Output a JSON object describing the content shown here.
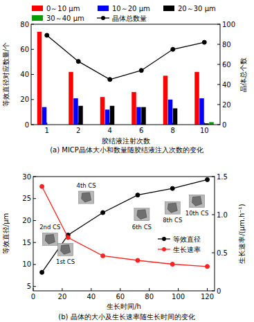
{
  "chart_data": [
    {
      "type": "bar",
      "title": "(a) MICP晶体大小和数量随胶结液注入次数的变化",
      "x_label": "胶结液注射次数",
      "y_label": "等效直径对应数量/个",
      "y2_label": "晶体总个数",
      "categories": [
        "1",
        "2",
        "4",
        "6",
        "8",
        "10"
      ],
      "series": [
        {
          "name": "0～10 μm",
          "color": "#ff0000",
          "values": [
            74,
            42,
            22,
            26,
            39,
            42
          ]
        },
        {
          "name": "10～20 μm",
          "color": "#0000ff",
          "values": [
            14,
            21,
            12,
            14,
            20,
            21
          ]
        },
        {
          "name": "20～30 μm",
          "color": "#000000",
          "values": [
            0,
            15,
            15,
            14,
            13,
            1
          ]
        },
        {
          "name": "30～40 μm",
          "color": "#00a000",
          "values": [
            0,
            0,
            0,
            0,
            0,
            2
          ]
        },
        {
          "name": "晶体总数量",
          "color": "#000000",
          "type": "line",
          "marker": "circle",
          "axis": "y2",
          "values": [
            89,
            63,
            45,
            54,
            75,
            82
          ]
        }
      ],
      "ylim": [
        0,
        80
      ],
      "yticks": [
        0,
        20,
        40,
        60,
        80
      ],
      "y2lim": [
        0,
        100
      ],
      "y2ticks": [
        0,
        20,
        40,
        60,
        80,
        100
      ],
      "legend": "top"
    },
    {
      "type": "line",
      "title": "(b) 晶体的大小及生长速率随生长时间的变化",
      "x_label": "生长时间/h",
      "y_label": "等效直径/μm",
      "y2_label": "生长速率/(μm.h⁻¹)",
      "x": [
        6,
        24,
        48,
        72,
        96,
        120
      ],
      "xlim": [
        0,
        125
      ],
      "xticks": [
        0,
        20,
        40,
        60,
        80,
        100,
        120
      ],
      "ylim": [
        4,
        30
      ],
      "yticks": [
        5,
        10,
        15,
        20,
        25,
        30
      ],
      "y2lim": [
        0,
        1.5
      ],
      "y2ticks": [
        0,
        0.5,
        {
          "value": 1,
          "label": "1.0"
        },
        1.5
      ],
      "series": [
        {
          "name": "等效直径",
          "color": "#000000",
          "marker": "circle",
          "values": [
            8.2,
            16.7,
            21.8,
            25.8,
            27.3,
            29.3
          ]
        },
        {
          "name": "生长速率",
          "color": "#ff2020",
          "marker": "circle",
          "axis": "y2",
          "values": [
            1.37,
            0.7,
            0.46,
            0.4,
            0.35,
            0.32
          ]
        }
      ],
      "annotations": [
        "1st CS",
        "2nd CS",
        "4th CS",
        "6th CS",
        "8th CS",
        "10th CS"
      ],
      "legend": "right"
    }
  ]
}
